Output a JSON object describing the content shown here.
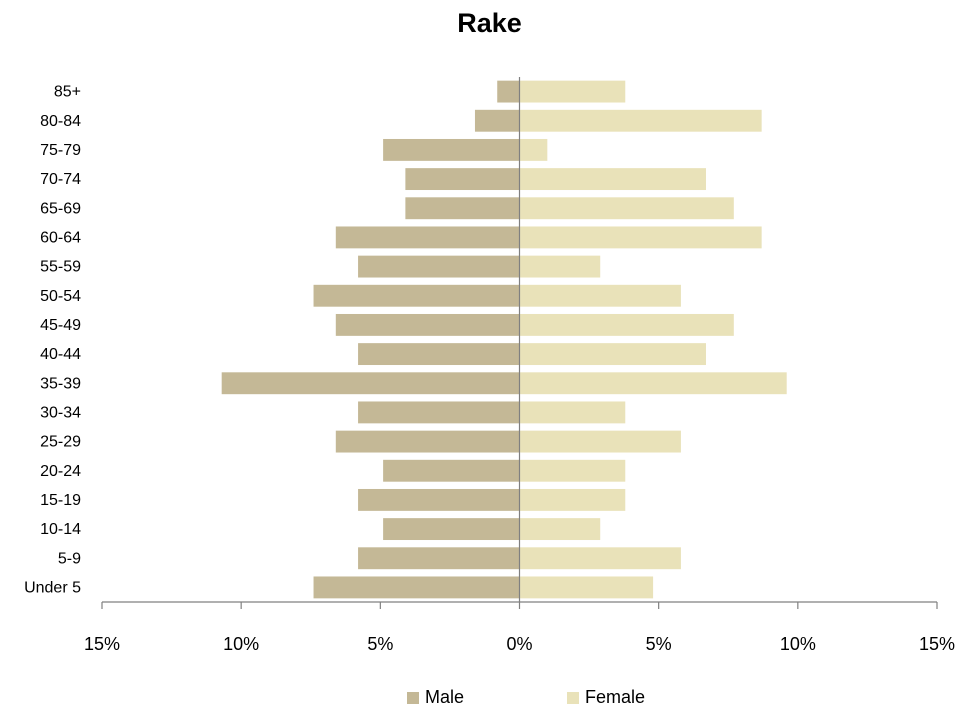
{
  "chart_data": {
    "type": "bar",
    "orientation": "horizontal",
    "title": "Rake",
    "categories": [
      "Under 5",
      "5-9",
      "10-14",
      "15-19",
      "20-24",
      "25-29",
      "30-34",
      "35-39",
      "40-44",
      "45-49",
      "50-54",
      "55-59",
      "60-64",
      "65-69",
      "70-74",
      "75-79",
      "80-84",
      "85+"
    ],
    "series": [
      {
        "name": "Male",
        "color": "#c4b896",
        "values": [
          -7.4,
          -5.8,
          -4.9,
          -5.8,
          -4.9,
          -6.6,
          -5.8,
          -10.7,
          -5.8,
          -6.6,
          -7.4,
          -5.8,
          -6.6,
          -4.1,
          -4.1,
          -4.9,
          -1.6,
          -0.8
        ]
      },
      {
        "name": "Female",
        "color": "#e9e2b9",
        "values": [
          4.8,
          5.8,
          2.9,
          3.8,
          3.8,
          5.8,
          3.8,
          9.6,
          6.7,
          7.7,
          5.8,
          2.9,
          8.7,
          7.7,
          6.7,
          1.0,
          8.7,
          3.8
        ]
      }
    ],
    "xlim": [
      -15,
      15
    ],
    "xticks": [
      -15,
      -10,
      -5,
      0,
      5,
      10,
      15
    ],
    "xtick_labels": [
      "15%",
      "10%",
      "5%",
      "0%",
      "5%",
      "10%",
      "15%"
    ],
    "legend_position": "bottom",
    "grid": false
  }
}
